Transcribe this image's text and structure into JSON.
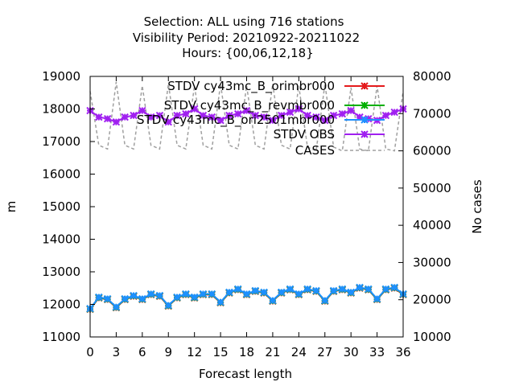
{
  "chart_data": {
    "type": "line",
    "title_lines": [
      "Selection: ALL using   716 stations",
      "Visibility   Period: 20210922-20211022",
      "Hours: {00,06,12,18}"
    ],
    "xlabel": "Forecast length",
    "ylabel": "m",
    "y2label": "No cases",
    "xlim": [
      0,
      36
    ],
    "ylim": [
      11000,
      19000
    ],
    "y2lim": [
      10000,
      80000
    ],
    "x_ticks": [
      0,
      3,
      6,
      9,
      12,
      15,
      18,
      21,
      24,
      27,
      30,
      33,
      36
    ],
    "y_ticks": [
      11000,
      12000,
      13000,
      14000,
      15000,
      16000,
      17000,
      18000,
      19000
    ],
    "y2_ticks": [
      10000,
      20000,
      30000,
      40000,
      50000,
      60000,
      70000,
      80000
    ],
    "x": [
      0,
      1,
      2,
      3,
      4,
      5,
      6,
      7,
      8,
      9,
      10,
      11,
      12,
      13,
      14,
      15,
      16,
      17,
      18,
      19,
      20,
      21,
      22,
      23,
      24,
      25,
      26,
      27,
      28,
      29,
      30,
      31,
      32,
      33,
      34,
      35,
      36
    ],
    "series": [
      {
        "name": "STDV cy43mc_B_orimbr000",
        "color": "#e41a1c",
        "marker": "x",
        "axis": "y1",
        "values": [
          11850,
          12200,
          12150,
          11900,
          12150,
          12250,
          12150,
          12300,
          12250,
          11950,
          12200,
          12300,
          12200,
          12300,
          12300,
          12050,
          12350,
          12450,
          12300,
          12400,
          12350,
          12100,
          12350,
          12450,
          12300,
          12450,
          12400,
          12100,
          12400,
          12450,
          12350,
          12500,
          12450,
          12150,
          12450,
          12500,
          12300
        ]
      },
      {
        "name": "STDV cy43mc_B_revmbr000",
        "color": "#00b000",
        "marker": "x",
        "axis": "y1",
        "values": [
          11860,
          12210,
          12160,
          11910,
          12160,
          12260,
          12160,
          12310,
          12260,
          11960,
          12210,
          12310,
          12210,
          12310,
          12310,
          12060,
          12360,
          12460,
          12310,
          12410,
          12360,
          12110,
          12360,
          12460,
          12310,
          12460,
          12410,
          12110,
          12410,
          12460,
          12360,
          12510,
          12460,
          12160,
          12460,
          12510,
          12310
        ]
      },
      {
        "name": "STDV cy43mc_B_ori2501mbr000",
        "color": "#1e90ff",
        "marker": "x",
        "axis": "y1",
        "values": [
          11870,
          12220,
          12170,
          11920,
          12170,
          12270,
          12170,
          12320,
          12270,
          11970,
          12220,
          12320,
          12220,
          12320,
          12320,
          12070,
          12370,
          12470,
          12320,
          12420,
          12370,
          12120,
          12370,
          12470,
          12320,
          12470,
          12420,
          12120,
          12420,
          12470,
          12370,
          12520,
          12470,
          12170,
          12470,
          12520,
          12320
        ]
      },
      {
        "name": "STDV OBS",
        "color": "#a020f0",
        "marker": "x",
        "axis": "y1",
        "values": [
          17950,
          17750,
          17700,
          17600,
          17750,
          17800,
          17950,
          17750,
          17800,
          17600,
          17800,
          17850,
          18000,
          17800,
          17750,
          17650,
          17800,
          17850,
          17950,
          17800,
          17750,
          17650,
          17800,
          17900,
          18000,
          17800,
          17750,
          17650,
          17800,
          17850,
          17950,
          17750,
          17700,
          17650,
          17800,
          17900,
          18000
        ]
      },
      {
        "name": "CASES",
        "color": "#a0a0a0",
        "marker": "",
        "axis": "y2",
        "values": [
          76000,
          61500,
          60500,
          78500,
          61500,
          60500,
          77500,
          61500,
          60500,
          78000,
          61500,
          60500,
          77500,
          61500,
          60500,
          78000,
          61500,
          60500,
          77500,
          61500,
          60500,
          78000,
          61500,
          60500,
          77500,
          61000,
          60000,
          78000,
          61000,
          60000,
          77000,
          60500,
          60000,
          77500,
          60500,
          60000,
          76000
        ]
      }
    ]
  }
}
